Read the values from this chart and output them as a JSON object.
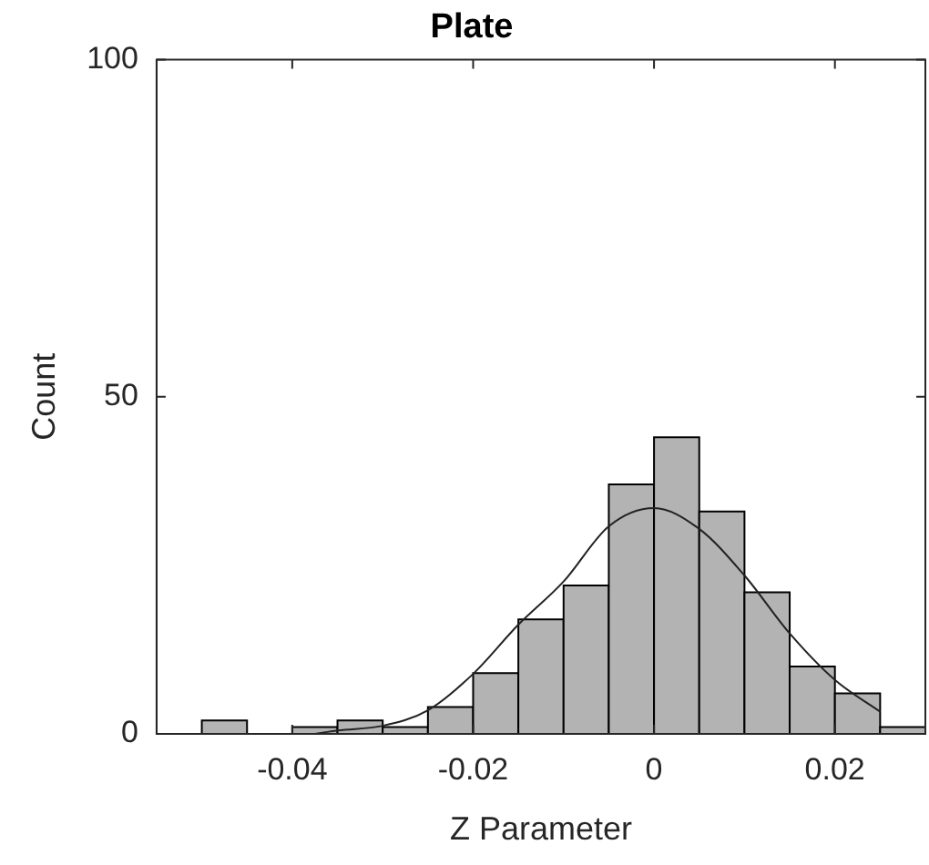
{
  "chart_data": {
    "type": "histogram",
    "title": "Plate",
    "xlabel": "Z Parameter",
    "ylabel": "Count",
    "bins": [
      -0.05,
      -0.045,
      -0.04,
      -0.035,
      -0.03,
      -0.025,
      -0.02,
      -0.015,
      -0.01,
      -0.005,
      0,
      0.005,
      0.01,
      0.015,
      0.02,
      0.025,
      0.03
    ],
    "values": [
      2,
      0,
      1,
      2,
      1,
      4,
      9,
      17,
      22,
      37,
      44,
      33,
      21,
      10,
      6,
      1
    ],
    "color": "#b3b3b3",
    "series": [
      {
        "type": "line",
        "color": "#222222",
        "x": [
          -0.0375,
          -0.035,
          -0.03,
          -0.025,
          -0.02,
          -0.015,
          -0.01,
          -0.005,
          0,
          0.005,
          0.01,
          0.015,
          0.02,
          0.025
        ],
        "values": [
          0,
          0.5,
          1.2,
          3.5,
          8.9,
          16.2,
          22.6,
          30.8,
          33.5,
          30.4,
          23.5,
          14.9,
          8.0,
          3.3
        ]
      }
    ],
    "xlim": [
      -0.055,
      0.03
    ],
    "xticks": [
      -0.04,
      -0.02,
      0,
      0.02
    ],
    "ylim": [
      0,
      100
    ],
    "yticks": [
      0,
      50,
      100
    ],
    "grid": false,
    "legend": false,
    "marker": "none",
    "line_style": "solid"
  }
}
